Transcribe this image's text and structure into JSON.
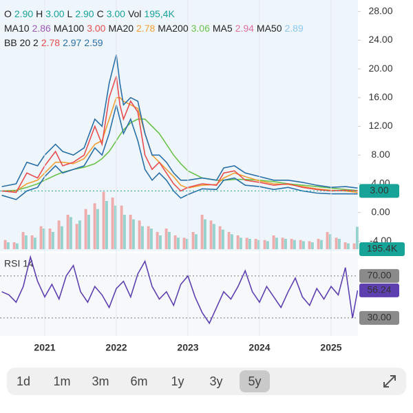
{
  "legend": {
    "ohlc": [
      {
        "label": "O",
        "value": "2.90"
      },
      {
        "label": "H",
        "value": "3.00"
      },
      {
        "label": "L",
        "value": "2.90"
      },
      {
        "label": "C",
        "value": "3.00"
      },
      {
        "label": "Vol",
        "value": "195,4K"
      }
    ],
    "ma": [
      {
        "label": "MA10",
        "value": "2.86",
        "color": "#9b59b6"
      },
      {
        "label": "MA100",
        "value": "3.00",
        "color": "#e84d4d"
      },
      {
        "label": "MA20",
        "value": "2.78",
        "color": "#f0a030"
      },
      {
        "label": "MA200",
        "value": "3.06",
        "color": "#6cc24a"
      },
      {
        "label": "MA5",
        "value": "2.94",
        "color": "#e06fa0"
      },
      {
        "label": "MA50",
        "value": "2.89",
        "color": "#8ec8f0"
      }
    ],
    "bb": {
      "label": "BB 20 2",
      "values": [
        {
          "value": "2.78",
          "color": "#e84d4d"
        },
        {
          "value": "2.97",
          "color": "#2a6fa8"
        },
        {
          "value": "2.59",
          "color": "#2a6fa8"
        }
      ]
    }
  },
  "chart_data": [
    {
      "type": "line",
      "xlim": [
        2020.375,
        2025.375
      ],
      "ylim": [
        -5.4,
        29.6
      ],
      "yticks": [
        {
          "value": -4,
          "label": "-4.00"
        },
        {
          "value": 0,
          "label": "0.00"
        },
        {
          "value": 4,
          "label": "4.00"
        },
        {
          "value": 8,
          "label": "8.00"
        },
        {
          "value": 12,
          "label": "12.00"
        },
        {
          "value": 16,
          "label": "16.00"
        },
        {
          "value": 20,
          "label": "20.00"
        },
        {
          "value": 24,
          "label": "24.00"
        },
        {
          "value": 28,
          "label": "28.00"
        }
      ],
      "x": [
        2020.4,
        2020.6,
        2020.75,
        2020.9,
        2021.0,
        2021.15,
        2021.25,
        2021.4,
        2021.55,
        2021.7,
        2021.8,
        2021.9,
        2022.0,
        2022.05,
        2022.1,
        2022.2,
        2022.3,
        2022.4,
        2022.5,
        2022.6,
        2022.7,
        2022.8,
        2022.9,
        2023.0,
        2023.2,
        2023.4,
        2023.5,
        2023.65,
        2023.8,
        2024.0,
        2024.2,
        2024.4,
        2024.6,
        2024.8,
        2025.0,
        2025.2,
        2025.37
      ],
      "series": [
        {
          "color": "#6cc24a",
          "values": [
            3.0,
            3.1,
            3.5,
            4,
            4.5,
            5.2,
            5.6,
            6.0,
            6.3,
            6.8,
            7.5,
            8.5,
            10,
            10.8,
            11.5,
            12.5,
            13,
            13,
            12,
            11,
            9.5,
            8,
            6.8,
            5.8,
            4.8,
            4.5,
            4.5,
            4.6,
            4.6,
            4.5,
            4.3,
            4.0,
            3.8,
            3.6,
            3.4,
            3.2,
            3.06
          ]
        },
        {
          "color": "#f0a030",
          "values": [
            3.0,
            3.0,
            4,
            4.5,
            5.5,
            7,
            7,
            6.8,
            7.5,
            9.5,
            10,
            13,
            16,
            16,
            15.5,
            15,
            14.5,
            11,
            8,
            7,
            6,
            5,
            3.8,
            3.4,
            3.8,
            3.9,
            4.8,
            5.5,
            5,
            4.4,
            4,
            3.9,
            3.6,
            3.3,
            3.1,
            3.0,
            2.78
          ]
        },
        {
          "color": "#2a6fa8",
          "values": [
            3.6,
            4,
            7,
            6.5,
            8,
            9.5,
            8.5,
            8,
            9,
            13,
            12,
            18,
            22,
            18,
            15,
            16,
            15.5,
            11,
            8,
            8,
            7,
            5.5,
            4.5,
            4.5,
            4.8,
            4.5,
            6.2,
            6.5,
            5.5,
            5,
            4.5,
            4.5,
            4.2,
            3.8,
            3.5,
            3.6,
            3.4
          ]
        },
        {
          "color": "#2a6fa8",
          "values": [
            2.4,
            1.8,
            3,
            3.5,
            5,
            6.5,
            5.5,
            6,
            6.5,
            9,
            8,
            11,
            15,
            13,
            11,
            13,
            10,
            6,
            4.5,
            5.5,
            4.5,
            3,
            2,
            2.5,
            3.3,
            3.2,
            4.5,
            4.8,
            3.8,
            3.6,
            3.2,
            3.5,
            3,
            2.7,
            2.6,
            2.6,
            2.59
          ]
        },
        {
          "color": "#e84d4d",
          "values": [
            3.0,
            2.8,
            5.5,
            4.8,
            6.5,
            8.5,
            6.5,
            7.0,
            8.0,
            12,
            9.5,
            16,
            19,
            15,
            13,
            15.5,
            14,
            8,
            6,
            7,
            5.5,
            4,
            3,
            3.5,
            4,
            3.8,
            5.5,
            5.8,
            4.5,
            4.2,
            3.8,
            4.0,
            3.5,
            3.2,
            3.0,
            3.1,
            3.0
          ],
          "last_label": "3.00"
        }
      ],
      "last_color": "#17a398"
    },
    {
      "type": "bar",
      "xlim": [
        2020.375,
        2025.375
      ],
      "ylim": [
        0,
        600
      ],
      "last_label": "195.4K",
      "last_color": "#17a398",
      "x": [
        2020.45,
        2020.575,
        2020.7,
        2020.825,
        2020.95,
        2021.075,
        2021.2,
        2021.325,
        2021.45,
        2021.575,
        2021.7,
        2021.825,
        2021.95,
        2022.075,
        2022.2,
        2022.325,
        2022.45,
        2022.575,
        2022.7,
        2022.825,
        2022.95,
        2023.075,
        2023.2,
        2023.325,
        2023.45,
        2023.575,
        2023.7,
        2023.825,
        2023.95,
        2024.075,
        2024.2,
        2024.325,
        2024.45,
        2024.575,
        2024.7,
        2024.825,
        2024.95,
        2025.075,
        2025.2,
        2025.325
      ],
      "series": [
        {
          "color": "#ef9a9a",
          "values": [
            80,
            60,
            150,
            120,
            200,
            180,
            250,
            300,
            220,
            350,
            400,
            500,
            450,
            380,
            300,
            250,
            200,
            150,
            180,
            120,
            100,
            150,
            300,
            250,
            200,
            150,
            120,
            100,
            90,
            80,
            120,
            100,
            90,
            80,
            70,
            90,
            150,
            100,
            60,
            50
          ]
        },
        {
          "color": "#80cbc4",
          "values": [
            60,
            50,
            120,
            100,
            180,
            150,
            200,
            280,
            250,
            300,
            350,
            420,
            380,
            300,
            260,
            200,
            180,
            120,
            150,
            100,
            90,
            130,
            260,
            220,
            170,
            130,
            100,
            90,
            80,
            70,
            100,
            90,
            80,
            70,
            60,
            80,
            130,
            90,
            50,
            195.4
          ]
        }
      ]
    },
    {
      "type": "line",
      "title": "RSI 14",
      "xlim": [
        2020.375,
        2025.375
      ],
      "ylim": [
        12.9,
        91.6
      ],
      "xticks": [
        2021,
        2022,
        2023,
        2024,
        2025
      ],
      "yticks": [
        {
          "value": 70,
          "label": "70.00"
        },
        {
          "value": 30,
          "label": "30.00"
        }
      ],
      "x": [
        2020.4,
        2020.5,
        2020.6,
        2020.7,
        2020.8,
        2020.9,
        2021.0,
        2021.1,
        2021.2,
        2021.3,
        2021.4,
        2021.5,
        2021.6,
        2021.7,
        2021.8,
        2021.9,
        2022.0,
        2022.1,
        2022.2,
        2022.3,
        2022.4,
        2022.5,
        2022.6,
        2022.7,
        2022.8,
        2022.9,
        2023.0,
        2023.1,
        2023.2,
        2023.3,
        2023.4,
        2023.5,
        2023.6,
        2023.7,
        2023.8,
        2023.9,
        2024.0,
        2024.1,
        2024.2,
        2024.3,
        2024.4,
        2024.5,
        2024.6,
        2024.7,
        2024.8,
        2024.9,
        2025.0,
        2025.1,
        2025.2,
        2025.3,
        2025.37
      ],
      "series": [
        {
          "color": "#5e3fb0",
          "values": [
            55,
            52,
            45,
            60,
            88,
            65,
            50,
            62,
            48,
            70,
            80,
            55,
            45,
            60,
            52,
            40,
            58,
            65,
            50,
            72,
            84,
            60,
            48,
            55,
            42,
            62,
            70,
            50,
            35,
            25,
            40,
            55,
            48,
            60,
            75,
            55,
            45,
            60,
            50,
            40,
            55,
            68,
            50,
            42,
            58,
            48,
            60,
            52,
            78,
            30,
            56.24
          ],
          "last_label": "56.24"
        }
      ]
    }
  ],
  "range_buttons": {
    "options": [
      "1d",
      "1m",
      "3m",
      "6m",
      "1y",
      "3y",
      "5y"
    ],
    "selected": 6
  }
}
